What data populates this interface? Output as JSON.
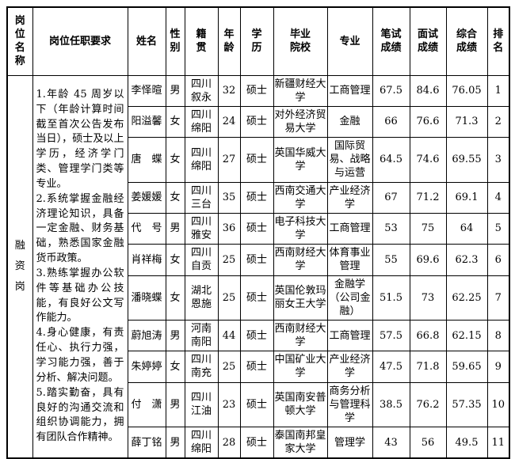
{
  "table": {
    "columns": [
      "岗\n位\n名\n称",
      "岗位任职要求",
      "姓名",
      "性\n别",
      "籍\n贯",
      "年\n龄",
      "学\n历",
      "毕业\n院校",
      "专业",
      "笔试\n成绩",
      "面试\n成绩",
      "综合\n成绩",
      "排\n名"
    ],
    "position_name": "融\n资\n岗",
    "requirements": [
      "1.年龄 45 周岁以下（年龄计算时间截至首次公告发布当日），硕士及以上学历，经济学门类、管理学门类等专业。",
      "2.系统掌握金融经济理论知识，具备一定金融、财务基础，熟悉国家金融货币政策。",
      "3.熟练掌握办公软件等基础办公技能，有良好公文写作能力。",
      "4.身心健康，有责任心、执行力强，学习能力强，善于分析、解决问题。",
      "5.踏实勤奋，具有良好的沟通交流和组织协调能力，拥有团队合作精神。"
    ],
    "rows": [
      {
        "name": "李怿暄",
        "gender": "男",
        "hometown": "四川\n叙永",
        "age": "32",
        "education": "硕士",
        "school": "新疆财经大学",
        "major": "工商管理",
        "written_score": "67.5",
        "interview_score": "84.6",
        "overall_score": "76.05",
        "rank": "1"
      },
      {
        "name": "阳溢馨",
        "gender": "女",
        "hometown": "四川\n绵阳",
        "age": "24",
        "education": "硕士",
        "school": "对外经济贸易大学",
        "major": "金融",
        "written_score": "66",
        "interview_score": "76.6",
        "overall_score": "71.3",
        "rank": "2"
      },
      {
        "name": "唐　蝶",
        "gender": "女",
        "hometown": "四川\n绵阳",
        "age": "27",
        "education": "硕士",
        "school": "英国华威大学",
        "major": "国际贸易、战略与运营",
        "written_score": "64.5",
        "interview_score": "74.6",
        "overall_score": "69.55",
        "rank": "3"
      },
      {
        "name": "姜媛媛",
        "gender": "女",
        "hometown": "四川\n三台",
        "age": "35",
        "education": "硕士",
        "school": "西南交通大学",
        "major": "产业经济学",
        "written_score": "67",
        "interview_score": "71.2",
        "overall_score": "69.1",
        "rank": "4"
      },
      {
        "name": "代　号",
        "gender": "男",
        "hometown": "四川\n雅安",
        "age": "36",
        "education": "硕士",
        "school": "电子科技大学",
        "major": "工商管理",
        "written_score": "53",
        "interview_score": "75",
        "overall_score": "64",
        "rank": "5"
      },
      {
        "name": "肖祥梅",
        "gender": "女",
        "hometown": "四川\n自贡",
        "age": "25",
        "education": "硕士",
        "school": "西南财经大学",
        "major": "体育事业管理",
        "written_score": "55",
        "interview_score": "69.6",
        "overall_score": "62.3",
        "rank": "6"
      },
      {
        "name": "潘晓蝶",
        "gender": "女",
        "hometown": "湖北\n恩施",
        "age": "25",
        "education": "硕士",
        "school": "英国伦敦玛丽女王大学",
        "major": "金融学（公司金融）",
        "written_score": "51.5",
        "interview_score": "73",
        "overall_score": "62.25",
        "rank": "7"
      },
      {
        "name": "蔚旭涛",
        "gender": "男",
        "hometown": "河南\n南阳",
        "age": "44",
        "education": "硕士",
        "school": "西南财经大学",
        "major": "工商管理",
        "written_score": "57.5",
        "interview_score": "66.8",
        "overall_score": "62.15",
        "rank": "8"
      },
      {
        "name": "朱婷婷",
        "gender": "女",
        "hometown": "四川\n南充",
        "age": "25",
        "education": "硕士",
        "school": "中国矿业大学",
        "major": "产业经济学",
        "written_score": "47.5",
        "interview_score": "71.8",
        "overall_score": "59.65",
        "rank": "9"
      },
      {
        "name": "付　潇",
        "gender": "男",
        "hometown": "四川\n江油",
        "age": "23",
        "education": "硕士",
        "school": "英国南安普顿大学",
        "major": "商务分析与管理科学",
        "written_score": "38.5",
        "interview_score": "76.2",
        "overall_score": "57.35",
        "rank": "10"
      },
      {
        "name": "薛丁铭",
        "gender": "男",
        "hometown": "四川\n绵阳",
        "age": "28",
        "education": "硕士",
        "school": "泰国南邦皇家大学",
        "major": "管理学",
        "written_score": "43",
        "interview_score": "56",
        "overall_score": "49.5",
        "rank": "11"
      }
    ]
  }
}
